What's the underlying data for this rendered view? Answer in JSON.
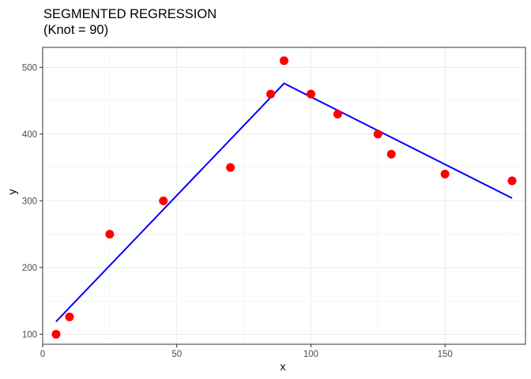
{
  "chart_data": {
    "type": "scatter",
    "title": [
      "SEGMENTED REGRESSION",
      "(Knot = 90)"
    ],
    "xlabel": "x",
    "ylabel": "y",
    "xlim": [
      0,
      180
    ],
    "ylim": [
      85,
      530
    ],
    "x_ticks": [
      0,
      50,
      100,
      150
    ],
    "y_ticks": [
      100,
      200,
      300,
      400,
      500
    ],
    "x_tick_labels": [
      "0",
      "50",
      "100",
      "150"
    ],
    "y_tick_labels": [
      "100",
      "200",
      "300",
      "400",
      "500"
    ],
    "grid": true,
    "series": [
      {
        "kind": "points",
        "color": "#ff0000",
        "points": [
          {
            "x": 5,
            "y": 100
          },
          {
            "x": 10,
            "y": 126
          },
          {
            "x": 25,
            "y": 250
          },
          {
            "x": 45,
            "y": 300
          },
          {
            "x": 70,
            "y": 350
          },
          {
            "x": 85,
            "y": 460
          },
          {
            "x": 90,
            "y": 510
          },
          {
            "x": 100,
            "y": 460
          },
          {
            "x": 110,
            "y": 430
          },
          {
            "x": 125,
            "y": 400
          },
          {
            "x": 130,
            "y": 370
          },
          {
            "x": 150,
            "y": 340
          },
          {
            "x": 175,
            "y": 330
          }
        ]
      },
      {
        "kind": "line",
        "color": "#0000ff",
        "points": [
          {
            "x": 5,
            "y": 119
          },
          {
            "x": 90,
            "y": 476
          },
          {
            "x": 175,
            "y": 304
          }
        ]
      }
    ]
  }
}
